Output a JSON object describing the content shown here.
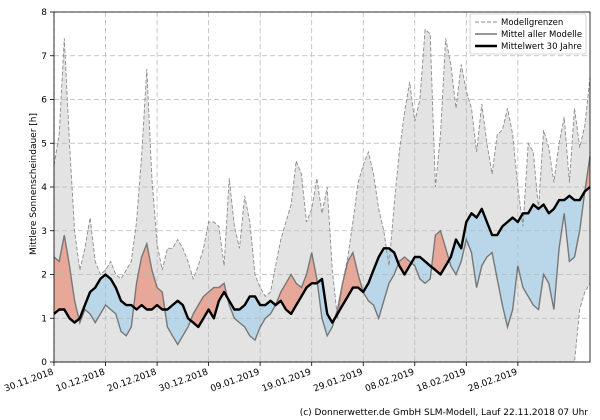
{
  "chart_data": {
    "type": "line",
    "title": "",
    "ylabel": "Mittlere Sonnenscheindauer [h]",
    "xlabel": "",
    "ylim": [
      0,
      8
    ],
    "yticks": [
      0,
      1,
      2,
      3,
      4,
      5,
      6,
      7,
      8
    ],
    "x_range": [
      0,
      104
    ],
    "xticks": [
      {
        "day": 0,
        "label": "30.11.2018"
      },
      {
        "day": 10,
        "label": "10.12.2018"
      },
      {
        "day": 20,
        "label": "20.12.2018"
      },
      {
        "day": 30,
        "label": "30.12.2018"
      },
      {
        "day": 40,
        "label": "09.01.2019"
      },
      {
        "day": 50,
        "label": "19.01.2019"
      },
      {
        "day": 60,
        "label": "29.01.2019"
      },
      {
        "day": 70,
        "label": "08.02.2019"
      },
      {
        "day": 80,
        "label": "18.02.2019"
      },
      {
        "day": 90,
        "label": "28.02.2019"
      }
    ],
    "grid": true,
    "legend_position": "top-right",
    "legend": [
      "Modellgrenzen",
      "Mittel aller Modelle",
      "Mittelwert 30 Jahre"
    ],
    "colors": {
      "envelope_fill": "#e3e3e3",
      "envelope_line": "#8c8c8c",
      "model_mean": "#777777",
      "climatology": "#000000",
      "above_fill": "#e8a899",
      "below_fill": "#b9d7e8",
      "grid": "#b8b8b8"
    },
    "series": [
      {
        "name": "Modellgrenzen",
        "upper": [
          4.5,
          5.2,
          7.4,
          5.0,
          3.0,
          2.1,
          2.6,
          3.3,
          2.3,
          2.0,
          2.1,
          2.3,
          2.0,
          1.9,
          2.1,
          2.3,
          3.2,
          4.7,
          6.7,
          4.2,
          2.7,
          2.1,
          2.6,
          2.6,
          2.8,
          2.6,
          2.3,
          1.9,
          2.2,
          2.6,
          3.2,
          3.2,
          3.1,
          2.2,
          4.2,
          3.1,
          2.6,
          3.8,
          3.2,
          2.0,
          1.7,
          1.5,
          1.6,
          2.2,
          2.8,
          3.2,
          3.6,
          4.6,
          4.3,
          3.2,
          3.5,
          4.2,
          3.4,
          4.0,
          2.1,
          1.0,
          1.8,
          2.4,
          3.2,
          4.1,
          4.5,
          4.8,
          4.3,
          3.5,
          3.0,
          2.2,
          3.6,
          4.8,
          5.7,
          6.4,
          5.5,
          6.0,
          7.6,
          7.5,
          4.0,
          5.2,
          7.4,
          6.8,
          5.8,
          6.8,
          6.2,
          5.8,
          4.8,
          5.9,
          5.0,
          4.3,
          5.2,
          5.3,
          5.8,
          5.2,
          4.0,
          3.1,
          5.0,
          4.8,
          3.5,
          5.3,
          4.9,
          4.1,
          5.0,
          5.6,
          4.1,
          5.8,
          4.9,
          5.4,
          6.5
        ],
        "lower": [
          0.0,
          0.0,
          0.0,
          0.0,
          0.0,
          0.0,
          0.0,
          0.0,
          0.0,
          0.0,
          0.0,
          0.0,
          0.0,
          0.0,
          0.0,
          0.0,
          0.0,
          0.0,
          0.0,
          0.0,
          0.0,
          0.0,
          0.0,
          0.0,
          0.0,
          0.0,
          0.0,
          0.0,
          0.0,
          0.0,
          0.0,
          0.0,
          0.0,
          0.0,
          0.0,
          0.0,
          0.0,
          0.0,
          0.0,
          0.0,
          0.0,
          0.0,
          0.0,
          0.0,
          0.0,
          0.0,
          0.0,
          0.0,
          0.0,
          0.0,
          0.0,
          0.0,
          0.0,
          0.0,
          0.0,
          0.0,
          0.0,
          0.0,
          0.0,
          0.0,
          0.0,
          0.0,
          0.0,
          0.0,
          0.0,
          0.0,
          0.0,
          0.0,
          0.0,
          0.0,
          0.0,
          0.0,
          0.0,
          0.0,
          0.0,
          0.0,
          0.0,
          0.0,
          0.0,
          0.0,
          0.0,
          0.0,
          0.0,
          0.0,
          0.0,
          0.0,
          0.0,
          0.0,
          0.0,
          0.0,
          0.0,
          0.0,
          0.0,
          0.0,
          0.0,
          0.0,
          0.0,
          0.0,
          0.0,
          0.0,
          0.0,
          0.0,
          1.2,
          1.6,
          1.8
        ]
      },
      {
        "name": "Mittel aller Modelle",
        "values": [
          2.4,
          2.3,
          2.9,
          2.2,
          1.4,
          0.9,
          1.2,
          1.1,
          0.9,
          1.1,
          1.3,
          1.2,
          1.1,
          0.7,
          0.6,
          0.8,
          1.8,
          2.4,
          2.7,
          2.1,
          1.7,
          1.6,
          0.8,
          0.6,
          0.4,
          0.6,
          0.8,
          1.1,
          1.3,
          1.5,
          1.6,
          1.7,
          1.7,
          1.8,
          1.3,
          1.0,
          0.9,
          0.8,
          0.6,
          0.5,
          0.8,
          1.0,
          1.1,
          1.3,
          1.6,
          1.8,
          2.0,
          1.8,
          1.7,
          2.0,
          2.5,
          1.9,
          1.0,
          0.6,
          0.8,
          1.2,
          1.8,
          2.3,
          2.5,
          2.0,
          1.6,
          1.4,
          1.3,
          1.0,
          1.4,
          1.8,
          2.0,
          2.3,
          2.4,
          2.3,
          2.2,
          1.9,
          1.8,
          1.9,
          2.9,
          3.0,
          2.6,
          2.2,
          2.0,
          2.3,
          2.8,
          2.5,
          1.7,
          2.2,
          2.4,
          2.5,
          1.9,
          1.3,
          0.8,
          1.2,
          2.2,
          1.7,
          1.5,
          1.3,
          1.2,
          2.0,
          1.8,
          1.2,
          2.6,
          3.4,
          2.3,
          2.4,
          3.0,
          3.9,
          4.7
        ]
      },
      {
        "name": "Mittelwert 30 Jahre",
        "values": [
          1.1,
          1.2,
          1.2,
          1.0,
          0.9,
          1.0,
          1.3,
          1.6,
          1.7,
          1.9,
          2.0,
          1.9,
          1.7,
          1.4,
          1.3,
          1.3,
          1.2,
          1.3,
          1.2,
          1.2,
          1.3,
          1.2,
          1.2,
          1.3,
          1.4,
          1.3,
          1.0,
          0.9,
          0.8,
          1.0,
          1.2,
          1.0,
          1.4,
          1.6,
          1.4,
          1.2,
          1.2,
          1.3,
          1.5,
          1.5,
          1.3,
          1.3,
          1.4,
          1.3,
          1.4,
          1.2,
          1.1,
          1.3,
          1.5,
          1.7,
          1.8,
          1.8,
          1.9,
          1.1,
          0.9,
          1.1,
          1.3,
          1.5,
          1.7,
          1.7,
          1.6,
          1.8,
          2.1,
          2.4,
          2.6,
          2.6,
          2.5,
          2.2,
          2.0,
          2.2,
          2.4,
          2.4,
          2.3,
          2.2,
          2.1,
          2.0,
          2.2,
          2.4,
          2.8,
          2.6,
          3.2,
          3.4,
          3.3,
          3.5,
          3.2,
          2.9,
          2.9,
          3.1,
          3.2,
          3.3,
          3.2,
          3.4,
          3.4,
          3.6,
          3.5,
          3.6,
          3.4,
          3.5,
          3.7,
          3.7,
          3.8,
          3.7,
          3.7,
          3.9,
          4.0
        ]
      }
    ]
  },
  "footer": {
    "credit": "(c) Donnerwetter.de GmbH SLM-Modell, Lauf 22.11.2018 07 Uhr"
  }
}
